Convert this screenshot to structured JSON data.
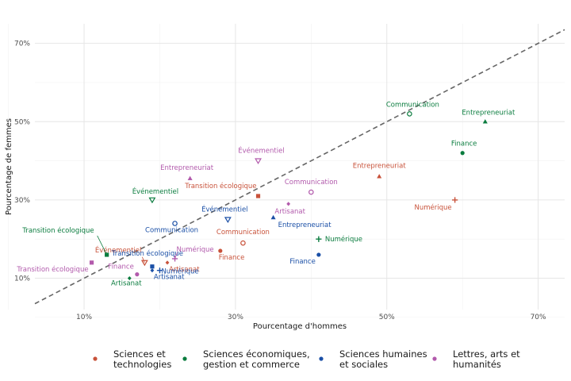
{
  "chart_data": {
    "type": "scatter",
    "title": "",
    "xlabel": "Pourcentage d'hommes",
    "ylabel": "Pourcentage de femmes",
    "xlim": [
      0.035,
      0.735
    ],
    "ylim": [
      0.02,
      0.75
    ],
    "x_ticks": [
      0.1,
      0.3,
      0.5,
      0.7
    ],
    "y_ticks": [
      0.1,
      0.3,
      0.5,
      0.7
    ],
    "x_tick_labels": [
      "10%",
      "30%",
      "50%",
      "70%"
    ],
    "y_tick_labels": [
      "10%",
      "30%",
      "50%",
      "70%"
    ],
    "grid": true,
    "reference_line": {
      "style": "dashed",
      "slope": 1,
      "intercept": 0,
      "color": "#666666"
    },
    "legend_position": "bottom",
    "series": [
      {
        "name": "Sciences et technologies",
        "color": "#c8523a",
        "points": [
          {
            "label": "Communication",
            "x": 0.31,
            "y": 0.19
          },
          {
            "label": "Finance",
            "x": 0.28,
            "y": 0.17
          },
          {
            "label": "Artisanat",
            "x": 0.21,
            "y": 0.14
          },
          {
            "label": "Numérique",
            "x": 0.59,
            "y": 0.3
          },
          {
            "label": "Entrepreneuriat",
            "x": 0.49,
            "y": 0.36
          },
          {
            "label": "Transition écologique",
            "x": 0.33,
            "y": 0.31
          },
          {
            "label": "Événementiel",
            "x": 0.18,
            "y": 0.14
          }
        ]
      },
      {
        "name": "Sciences économiques, gestion et commerce",
        "color": "#0a7c3e",
        "points": [
          {
            "label": "Communication",
            "x": 0.53,
            "y": 0.52
          },
          {
            "label": "Entrepreneuriat",
            "x": 0.63,
            "y": 0.5
          },
          {
            "label": "Finance",
            "x": 0.6,
            "y": 0.42
          },
          {
            "label": "Événementiel",
            "x": 0.19,
            "y": 0.3
          },
          {
            "label": "Numérique",
            "x": 0.41,
            "y": 0.2
          },
          {
            "label": "Transition écologique",
            "x": 0.13,
            "y": 0.16
          },
          {
            "label": "Artisanat",
            "x": 0.16,
            "y": 0.1
          }
        ]
      },
      {
        "name": "Sciences humaines et sociales",
        "color": "#1a4fa6",
        "points": [
          {
            "label": "Événementiel",
            "x": 0.29,
            "y": 0.25
          },
          {
            "label": "Entrepreneuriat",
            "x": 0.35,
            "y": 0.255
          },
          {
            "label": "Communication",
            "x": 0.22,
            "y": 0.24
          },
          {
            "label": "Transition écologique",
            "x": 0.19,
            "y": 0.13
          },
          {
            "label": "Finance",
            "x": 0.41,
            "y": 0.16
          },
          {
            "label": "Numérique",
            "x": 0.2,
            "y": 0.12
          },
          {
            "label": "Artisanat",
            "x": 0.19,
            "y": 0.12
          }
        ]
      },
      {
        "name": "Lettres, arts et humanités",
        "color": "#b25aac",
        "points": [
          {
            "label": "Événementiel",
            "x": 0.33,
            "y": 0.4
          },
          {
            "label": "Entrepreneuriat",
            "x": 0.24,
            "y": 0.355
          },
          {
            "label": "Communication",
            "x": 0.4,
            "y": 0.32
          },
          {
            "label": "Artisanat",
            "x": 0.37,
            "y": 0.29
          },
          {
            "label": "Numérique",
            "x": 0.22,
            "y": 0.15
          },
          {
            "label": "Transition écologique",
            "x": 0.11,
            "y": 0.14
          },
          {
            "label": "Finance",
            "x": 0.17,
            "y": 0.11
          }
        ]
      }
    ]
  },
  "legend": {
    "items": [
      {
        "line1": "Sciences et",
        "line2": "technologies",
        "color": "#c8523a"
      },
      {
        "line1": "Sciences économiques,",
        "line2": "gestion et commerce",
        "color": "#0a7c3e"
      },
      {
        "line1": "Sciences humaines",
        "line2": "et sociales",
        "color": "#1a4fa6"
      },
      {
        "line1": "Lettres, arts et",
        "line2": "humanités",
        "color": "#b25aac"
      }
    ]
  }
}
